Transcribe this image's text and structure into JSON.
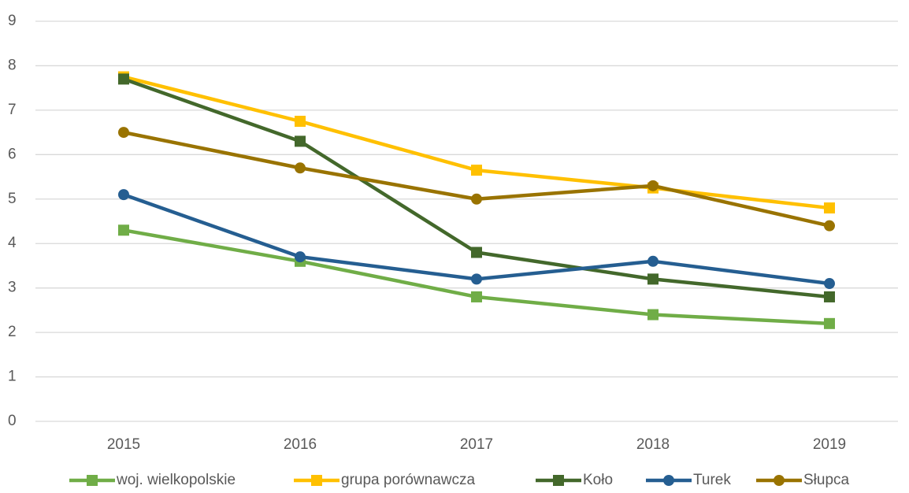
{
  "chart_data": {
    "type": "line",
    "categories": [
      "2015",
      "2016",
      "2017",
      "2018",
      "2019"
    ],
    "series": [
      {
        "name": "woj. wielkopolskie",
        "color": "#70ad47",
        "marker": "square",
        "values": [
          4.3,
          3.6,
          2.8,
          2.4,
          2.2
        ]
      },
      {
        "name": "grupa porównawcza",
        "color": "#ffc000",
        "marker": "square",
        "values": [
          7.75,
          6.75,
          5.65,
          5.25,
          4.8
        ]
      },
      {
        "name": "Koło",
        "color": "#43682b",
        "marker": "square",
        "values": [
          7.7,
          6.3,
          3.8,
          3.2,
          2.8
        ]
      },
      {
        "name": "Turek",
        "color": "#255e91",
        "marker": "circle",
        "values": [
          5.1,
          3.7,
          3.2,
          3.6,
          3.1
        ]
      },
      {
        "name": "Słupca",
        "color": "#997300",
        "marker": "circle",
        "values": [
          6.5,
          5.7,
          5.0,
          5.3,
          4.4
        ]
      }
    ],
    "ylim": [
      0,
      9
    ],
    "yticks": [
      0,
      1,
      2,
      3,
      4,
      5,
      6,
      7,
      8,
      9
    ],
    "grid": true,
    "legend": "bottom"
  }
}
